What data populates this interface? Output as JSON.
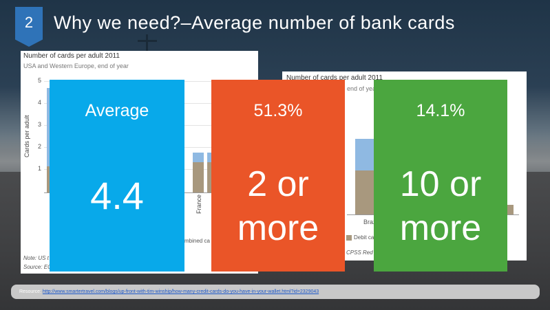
{
  "slide": {
    "number": "2",
    "title": "Why we need?–Average number of bank cards"
  },
  "left_chart": {
    "title": "Number of cards per adult 2011",
    "subtitle": "USA and Western Europe, end of year",
    "ylabel": "Cards per adult",
    "yticks": [
      "5",
      "4",
      "3",
      "2",
      "1"
    ],
    "visible_category": "France",
    "legend_fragment": "mbined ca",
    "note": "Note: US t",
    "source": "Source: EC"
  },
  "right_chart": {
    "title": "Number of cards per adult 2011",
    "subtitle_fragment": "end of year",
    "visible_category": "Braz",
    "legend_fragment": "Debit ca",
    "source_fragment": "CPSS Red B"
  },
  "stats": [
    {
      "top": "Average",
      "line1": "4.4",
      "line2": "",
      "color": "#08a9ea"
    },
    {
      "top": "51.3%",
      "line1": "2 or",
      "line2": "more",
      "color": "#ea5528"
    },
    {
      "top": "14.1%",
      "line1": "10 or",
      "line2": "more",
      "color": "#4ba63f"
    }
  ],
  "resource": {
    "label": "Resource:",
    "url": "http://www.smartertravel.com/blogs/up-front-with-tim-winship/how-many-credit-cards-do-you-have-in-your-wallet.html?id=2329043"
  },
  "colors": {
    "title_tab": "#2f73b8",
    "credit_bar": "#8fb9e2",
    "debit_bar": "#a8987e"
  }
}
